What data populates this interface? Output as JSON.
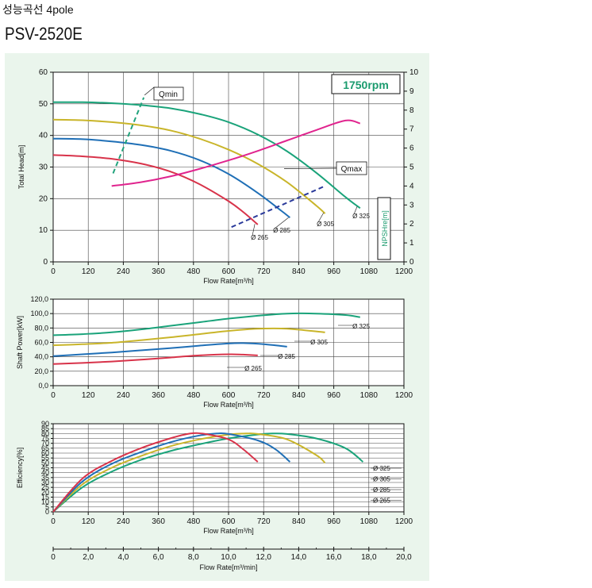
{
  "header": {
    "subtitle": "성능곡선 4pole",
    "title": "PSV-2520E"
  },
  "colors": {
    "d325": "#1aa37a",
    "d305": "#c9b52a",
    "d285": "#1f6fb6",
    "d265": "#d8334a",
    "npsh": "#e0248e",
    "limit": "#21a37c",
    "qmax": "#2a3a9a",
    "background": "#eaf5ec",
    "rpm_text": "#1a9b6e"
  },
  "chart_data": [
    {
      "id": "head",
      "type": "line",
      "speed_label": "1750rpm",
      "xlabel": "Flow Rate[m³/h]",
      "ylabel": "Total Head[m]",
      "y2label": "NPSHre[m]",
      "xlim": [
        0,
        1200
      ],
      "ylim": [
        0,
        60
      ],
      "y2lim": [
        0,
        10
      ],
      "xticks": [
        0,
        120,
        240,
        360,
        480,
        600,
        720,
        840,
        960,
        1080,
        1200
      ],
      "yticks": [
        0,
        10,
        20,
        30,
        40,
        50,
        60
      ],
      "y2ticks": [
        0,
        1,
        2,
        3,
        4,
        5,
        6,
        7,
        8,
        9,
        10
      ],
      "grid": true,
      "series": [
        {
          "name": "Ø 325",
          "color_key": "d325",
          "x": [
            0,
            100,
            200,
            300,
            400,
            500,
            600,
            700,
            800,
            900,
            1000,
            1050
          ],
          "y": [
            50.5,
            50.5,
            50.2,
            49.6,
            48.6,
            46.8,
            44.2,
            40.3,
            35.0,
            28.2,
            20.5,
            17.0
          ]
        },
        {
          "name": "Ø 305",
          "color_key": "d305",
          "x": [
            0,
            100,
            200,
            300,
            400,
            500,
            600,
            700,
            800,
            900,
            930
          ],
          "y": [
            45.0,
            44.8,
            44.2,
            43.2,
            41.6,
            39.0,
            35.5,
            31.0,
            25.2,
            17.8,
            15.3
          ]
        },
        {
          "name": "Ø 285",
          "color_key": "d285",
          "x": [
            0,
            100,
            200,
            300,
            400,
            500,
            600,
            700,
            780,
            810
          ],
          "y": [
            39.0,
            38.8,
            38.1,
            37.0,
            35.2,
            32.2,
            27.8,
            21.8,
            16.2,
            14.0
          ]
        },
        {
          "name": "Ø 265",
          "color_key": "d265",
          "x": [
            0,
            100,
            200,
            300,
            400,
            500,
            600,
            650,
            700
          ],
          "y": [
            33.8,
            33.4,
            32.6,
            31.1,
            28.6,
            24.6,
            19.2,
            15.8,
            11.8
          ]
        }
      ],
      "npsh": {
        "name": "NPSHre",
        "color_key": "npsh",
        "axis": "y2",
        "x": [
          200,
          300,
          400,
          500,
          600,
          700,
          800,
          900,
          1000,
          1050
        ],
        "y": [
          4.0,
          4.2,
          4.5,
          4.9,
          5.35,
          5.85,
          6.4,
          6.95,
          7.45,
          7.3
        ]
      },
      "qmin": {
        "label": "Qmin",
        "color_key": "limit",
        "x": [
          205,
          310
        ],
        "y": [
          28,
          52
        ]
      },
      "qmax": {
        "label": "Qmax",
        "color_key": "qmax",
        "x": [
          610,
          930
        ],
        "y": [
          11,
          24
        ]
      },
      "annotations": [
        "Ø 325",
        "Ø 305",
        "Ø 285",
        "Ø 265"
      ]
    },
    {
      "id": "power",
      "type": "line",
      "xlabel": "Flow Rate[m³/h]",
      "ylabel": "Shaft Power[kW]",
      "xlim": [
        0,
        1200
      ],
      "ylim": [
        0,
        120
      ],
      "xticks": [
        0,
        120,
        240,
        360,
        480,
        600,
        720,
        840,
        960,
        1080,
        1200
      ],
      "yticks": [
        "0,0",
        "20,0",
        "40,0",
        "60,0",
        "80,0",
        "100,0",
        "120,0"
      ],
      "grid": true,
      "series": [
        {
          "name": "Ø 325",
          "color_key": "d325",
          "x": [
            0,
            100,
            200,
            300,
            400,
            500,
            600,
            700,
            800,
            900,
            1000,
            1050
          ],
          "y": [
            70,
            71.5,
            74,
            78,
            83,
            88,
            93,
            97,
            100,
            100,
            98,
            95
          ]
        },
        {
          "name": "Ø 305",
          "color_key": "d305",
          "x": [
            0,
            100,
            200,
            300,
            400,
            500,
            600,
            700,
            800,
            930
          ],
          "y": [
            56,
            57.5,
            59.5,
            63,
            67,
            71.5,
            76,
            79,
            79,
            74
          ]
        },
        {
          "name": "Ø 285",
          "color_key": "d285",
          "x": [
            0,
            100,
            200,
            300,
            400,
            500,
            600,
            650,
            720,
            800
          ],
          "y": [
            41,
            43.5,
            46,
            49,
            52,
            55.5,
            58.5,
            59,
            57.5,
            54
          ]
        },
        {
          "name": "Ø 265",
          "color_key": "d265",
          "x": [
            0,
            100,
            200,
            300,
            400,
            500,
            600,
            650,
            700
          ],
          "y": [
            30,
            31.5,
            33.5,
            36,
            39,
            42,
            43.5,
            43,
            42
          ]
        }
      ],
      "annotations": [
        "Ø 325",
        "Ø 305",
        "Ø 285",
        "Ø 265"
      ]
    },
    {
      "id": "efficiency",
      "type": "line",
      "xlabel": "Flow Rate[m³/h]",
      "x2label": "Flow Rate[m³/min]",
      "ylabel": "Efficiency[%]",
      "xlim": [
        0,
        1200
      ],
      "ylim": [
        0,
        90
      ],
      "x2lim": [
        0,
        20
      ],
      "xticks": [
        0,
        120,
        240,
        360,
        480,
        600,
        720,
        840,
        960,
        1080,
        1200
      ],
      "yticks": [
        0,
        5,
        10,
        15,
        20,
        25,
        30,
        35,
        40,
        45,
        50,
        55,
        60,
        65,
        70,
        75,
        80,
        85,
        90
      ],
      "ytick_labels": [
        0,
        10,
        20,
        30,
        40,
        50,
        60,
        70,
        80,
        90
      ],
      "x2ticks": [
        "0",
        "2,0",
        "4,0",
        "6,0",
        "8,0",
        "10,0",
        "12,0",
        "14,0",
        "16,0",
        "18,0",
        "20,0"
      ],
      "grid": true,
      "series": [
        {
          "name": "Ø 325",
          "color_key": "d325",
          "x": [
            0,
            100,
            200,
            300,
            400,
            500,
            600,
            700,
            750,
            800,
            900,
            1000,
            1060
          ],
          "y": [
            0,
            25,
            41,
            53,
            62,
            69,
            75,
            79,
            80,
            79.5,
            75,
            65,
            51
          ]
        },
        {
          "name": "Ø 305",
          "color_key": "d305",
          "x": [
            0,
            100,
            200,
            300,
            400,
            500,
            600,
            660,
            700,
            800,
            900,
            930
          ],
          "y": [
            0,
            28,
            45,
            57,
            67,
            74,
            79,
            80,
            79.5,
            74,
            58,
            50
          ]
        },
        {
          "name": "Ø 285",
          "color_key": "d285",
          "x": [
            0,
            100,
            200,
            300,
            400,
            500,
            560,
            600,
            700,
            760,
            810
          ],
          "y": [
            0,
            31,
            49,
            61,
            71,
            78,
            80,
            79.5,
            73,
            64,
            51
          ]
        },
        {
          "name": "Ø 265",
          "color_key": "d265",
          "x": [
            0,
            100,
            200,
            300,
            400,
            470,
            520,
            600,
            650,
            700
          ],
          "y": [
            0,
            34,
            52,
            65,
            75,
            80,
            79.5,
            74,
            64,
            51
          ]
        }
      ],
      "annotations": [
        "Ø 325",
        "Ø 305",
        "Ø 285",
        "Ø 265"
      ]
    }
  ]
}
